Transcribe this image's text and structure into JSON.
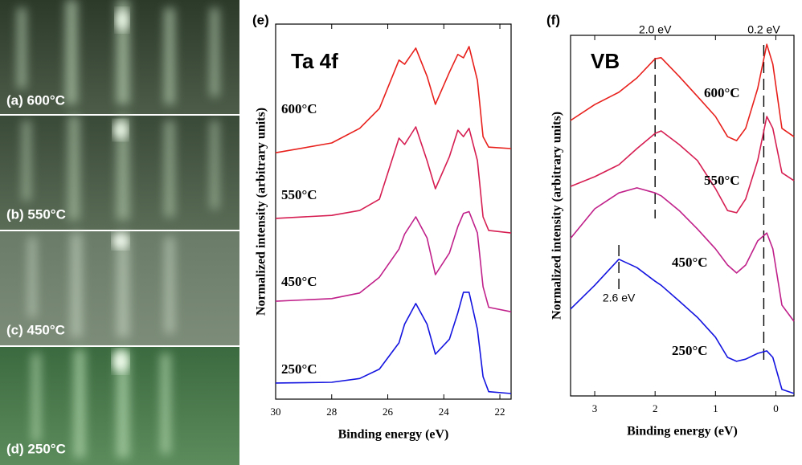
{
  "images": [
    {
      "label": "(a) 600°C"
    },
    {
      "label": "(b) 550°C"
    },
    {
      "label": "(c) 450°C"
    },
    {
      "label": "(d) 250°C"
    }
  ],
  "chart_data": [
    {
      "type": "line",
      "title": "(e)",
      "inset_label": "Ta 4f",
      "x_label": "Binding energy (eV)",
      "y_label": "Normalized intensity (arbitrary units)",
      "x": [
        30,
        28,
        27,
        26.3,
        25.6,
        25.4,
        25.0,
        24.6,
        24.3,
        23.8,
        23.5,
        23.3,
        23.1,
        22.8,
        22.6,
        22.4,
        21.6
      ],
      "xlim": [
        30,
        21.6
      ],
      "xticks": [
        30,
        28,
        26,
        24,
        22
      ],
      "ylim": [
        0,
        10
      ],
      "series": [
        {
          "name": "600°C",
          "color": "#e8201c",
          "values": [
            6.57,
            6.83,
            7.22,
            7.75,
            9.04,
            8.93,
            9.36,
            8.61,
            7.86,
            8.72,
            9.19,
            9.1,
            9.4,
            8.5,
            7.0,
            6.72,
            6.68
          ]
        },
        {
          "name": "550°C",
          "color": "#d61e52",
          "values": [
            4.82,
            4.9,
            5.03,
            5.33,
            6.96,
            6.79,
            7.26,
            6.36,
            5.61,
            6.47,
            7.17,
            7.0,
            7.22,
            6.36,
            4.86,
            4.5,
            4.43
          ]
        },
        {
          "name": "450°C",
          "color": "#c0208a",
          "values": [
            2.61,
            2.68,
            2.83,
            3.25,
            4.0,
            4.4,
            4.86,
            4.3,
            3.32,
            3.9,
            4.6,
            4.95,
            5.0,
            4.43,
            3.0,
            2.45,
            2.33
          ]
        },
        {
          "name": "250°C",
          "color": "#1414e0",
          "values": [
            0.43,
            0.45,
            0.55,
            0.8,
            1.5,
            2.0,
            2.55,
            2.0,
            1.2,
            1.6,
            2.3,
            2.85,
            2.85,
            1.86,
            0.6,
            0.2,
            0.15
          ]
        }
      ]
    },
    {
      "type": "line",
      "title": "(f)",
      "inset_label": "VB",
      "x_label": "Binding energy (eV)",
      "y_label": "Normalized intensity (arbitrary units)",
      "x": [
        3.4,
        3.0,
        2.6,
        2.3,
        2.0,
        1.9,
        1.6,
        1.3,
        1.0,
        0.8,
        0.65,
        0.5,
        0.3,
        0.15,
        0.05,
        -0.1,
        -0.3
      ],
      "xlim": [
        3.4,
        -0.3
      ],
      "xticks": [
        3,
        2,
        1,
        0
      ],
      "ylim": [
        0,
        10
      ],
      "annotations": [
        {
          "text": "2.0 eV",
          "x": 2.0
        },
        {
          "text": "0.2 eV",
          "x": 0.2
        },
        {
          "text": "2.6 eV",
          "x": 2.6
        }
      ],
      "series": [
        {
          "name": "600°C",
          "color": "#e8201c",
          "values": [
            7.64,
            8.08,
            8.42,
            8.82,
            9.35,
            9.38,
            8.86,
            8.31,
            7.75,
            7.19,
            7.08,
            7.42,
            8.53,
            9.75,
            9.2,
            7.42,
            7.19
          ]
        },
        {
          "name": "550°C",
          "color": "#d61e52",
          "values": [
            5.81,
            6.08,
            6.41,
            6.86,
            7.28,
            7.35,
            6.97,
            6.53,
            5.75,
            5.14,
            5.08,
            5.46,
            6.53,
            7.75,
            7.42,
            6.19,
            5.97
          ]
        },
        {
          "name": "450°C",
          "color": "#c0208a",
          "values": [
            4.37,
            5.19,
            5.63,
            5.77,
            5.63,
            5.55,
            5.14,
            4.63,
            4.08,
            3.63,
            3.41,
            3.63,
            4.3,
            4.52,
            4.08,
            2.52,
            2.07
          ]
        },
        {
          "name": "250°C",
          "color": "#1414e0",
          "values": [
            2.41,
            3.07,
            3.79,
            3.56,
            3.18,
            3.07,
            2.63,
            2.18,
            1.63,
            1.07,
            0.96,
            1.02,
            1.18,
            1.25,
            1.07,
            0.18,
            0.07
          ]
        }
      ]
    }
  ]
}
